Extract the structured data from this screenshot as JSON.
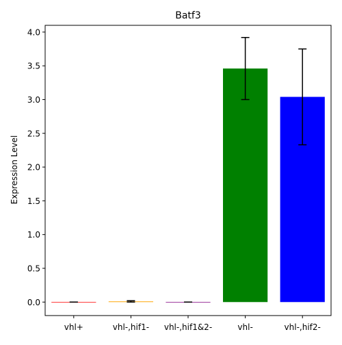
{
  "chart_data": {
    "type": "bar",
    "title": "Batf3",
    "xlabel": "",
    "ylabel": "Expression Level",
    "categories": [
      "vhl+",
      "vhl-,hif1-",
      "vhl-,hif1&2-",
      "vhl-",
      "vhl-,hif2-"
    ],
    "values": [
      0.0,
      0.01,
      0.0,
      3.46,
      3.04
    ],
    "errors": [
      0.0,
      0.01,
      0.0,
      0.46,
      0.71
    ],
    "colors": [
      "#ff0000",
      "#ffa500",
      "#800080",
      "#008000",
      "#0000ff"
    ],
    "ylim": [
      -0.2,
      4.1
    ],
    "yticks": [
      "0.0",
      "0.5",
      "1.0",
      "1.5",
      "2.0",
      "2.5",
      "3.0",
      "3.5",
      "4.0"
    ],
    "grid": false,
    "legend": "none"
  }
}
